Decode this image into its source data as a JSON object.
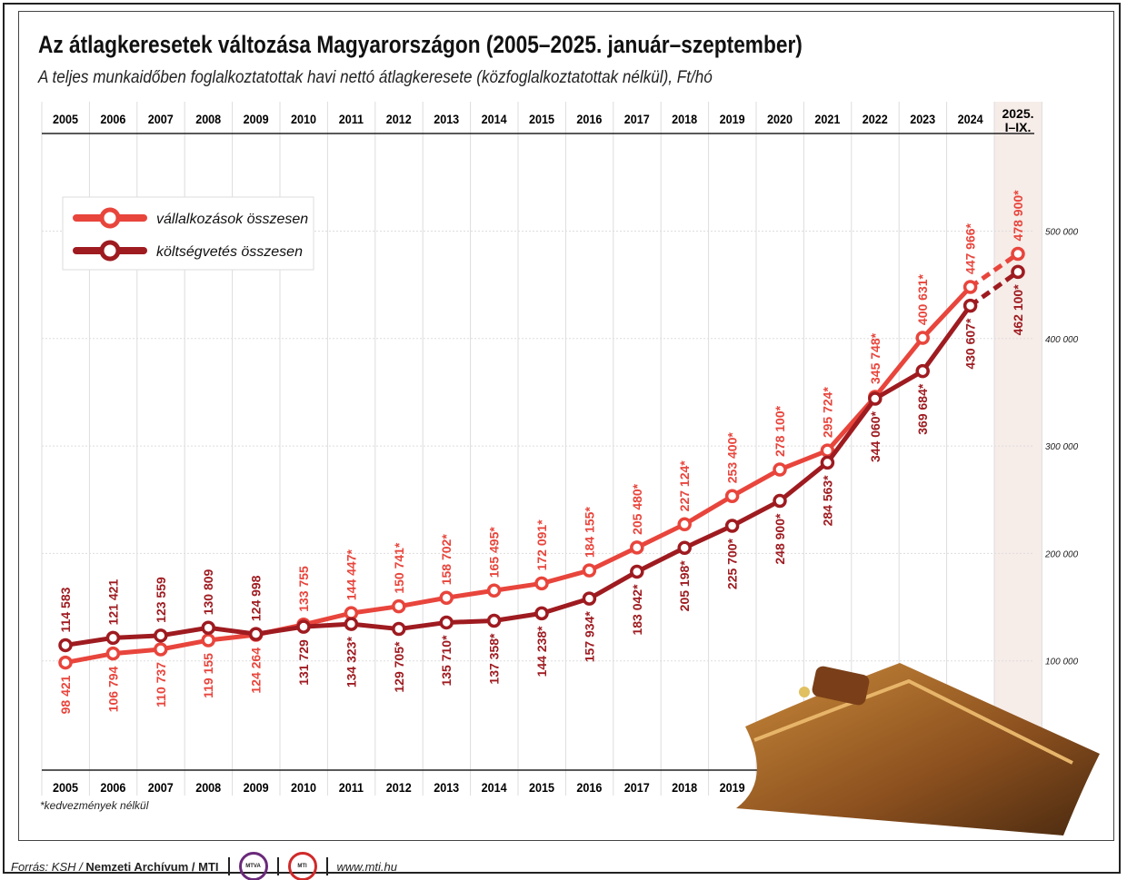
{
  "title": "Az átlagkeresetek változása Magyarországon (2005–2025. január–szeptember)",
  "subtitle": "A teljes munkaidőben foglalkoztatottak havi nettó átlagkeresete (közfoglalkoztatottak nélkül), Ft/hó",
  "note": "*kedvezmények nélkül",
  "footer": {
    "source_prefix": "Forrás: KSH / ",
    "source_bold": "Nemzeti Archívum / MTI",
    "logo1": "MTVA",
    "logo2": "MTI",
    "url": "www.mti.hu"
  },
  "chart_data": {
    "type": "line",
    "categories": [
      "2005",
      "2006",
      "2007",
      "2008",
      "2009",
      "2010",
      "2011",
      "2012",
      "2013",
      "2014",
      "2015",
      "2016",
      "2017",
      "2018",
      "2019",
      "2020",
      "2021",
      "2022",
      "2023",
      "2024",
      "2025. I–IX."
    ],
    "highlighted_category": "2025. I–IX.",
    "ylim": [
      0,
      550000
    ],
    "yticks": [
      100000,
      200000,
      300000,
      400000,
      500000
    ],
    "ytick_labels": [
      "100 000",
      "200 000",
      "300 000",
      "400 000",
      "500 000"
    ],
    "ytick_position": "right",
    "grid": true,
    "legend_position": "top-left",
    "series": [
      {
        "name": "vállalkozások összesen",
        "color": "#e8453c",
        "values": [
          98421,
          106794,
          110737,
          119155,
          124264,
          133755,
          144447,
          150741,
          158702,
          165495,
          172091,
          184155,
          205480,
          227124,
          253400,
          278100,
          295724,
          345748,
          400631,
          447966,
          478900
        ],
        "labels": [
          "98 421",
          "106 794",
          "110 737",
          "119 155",
          "124 264",
          "133 755",
          "144 447*",
          "150 741*",
          "158 702*",
          "165 495*",
          "172 091*",
          "184 155*",
          "205 480*",
          "227 124*",
          "253 400*",
          "278 100*",
          "295 724*",
          "345 748*",
          "400 631*",
          "447 966*",
          "478 900*"
        ]
      },
      {
        "name": "költségvetés összesen",
        "color": "#9e1b20",
        "values": [
          114583,
          121421,
          123559,
          130809,
          124998,
          131729,
          134323,
          129705,
          135710,
          137358,
          144238,
          157934,
          183042,
          205198,
          225700,
          248900,
          284563,
          344060,
          369684,
          430607,
          462100
        ],
        "labels": [
          "114 583",
          "121 421",
          "123 559",
          "130 809",
          "124 998",
          "131 729",
          "134 323*",
          "129 705*",
          "135 710*",
          "137 358*",
          "144 238*",
          "157 934*",
          "183 042*",
          "205 198*",
          "225 700*",
          "248 900*",
          "284 563*",
          "344 060*",
          "369 684*",
          "430 607*",
          "462 100*"
        ]
      }
    ]
  }
}
